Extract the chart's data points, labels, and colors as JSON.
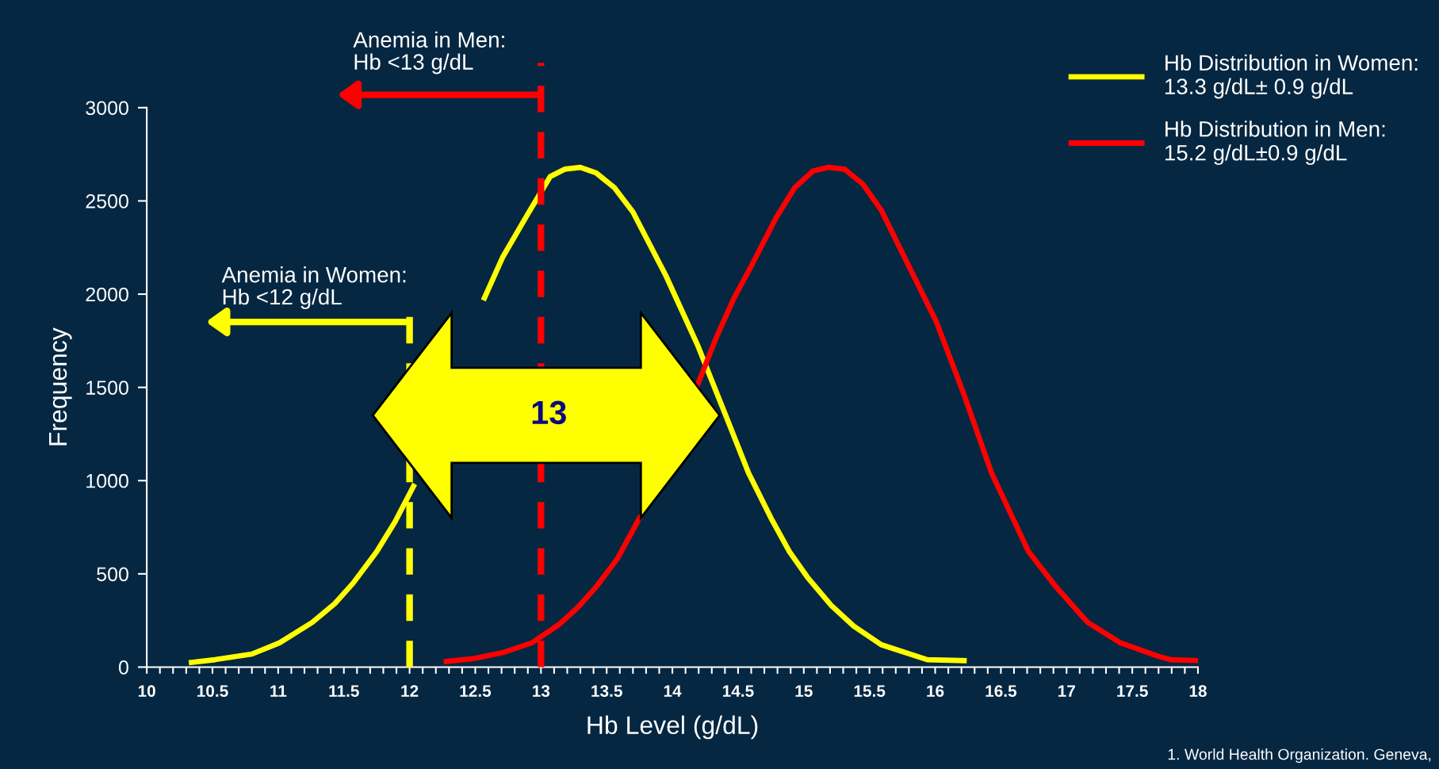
{
  "chart_data": {
    "type": "line",
    "xlabel": "Hb Level (g/dL)",
    "ylabel": "Frequency",
    "series": [
      {
        "name": "Hb Distribution in Women:\n13.3 g/dL± 0.9 g/dL",
        "color": "#ffff00",
        "x": [
          10.34,
          10.52,
          10.8,
          11.01,
          11.26,
          11.43,
          11.57,
          11.75,
          11.89,
          12.03,
          12.17,
          12.34,
          12.57,
          12.71,
          12.9,
          13.07,
          13.18,
          13.3,
          13.42,
          13.56,
          13.7,
          13.95,
          14.19,
          14.4,
          14.58,
          14.75,
          14.89,
          15.03,
          15.21,
          15.38,
          15.59,
          15.94,
          16.22
        ],
        "values": [
          25,
          40,
          70,
          130,
          240,
          340,
          450,
          620,
          780,
          970,
          null,
          null,
          1980,
          2200,
          2430,
          2630,
          2670,
          2680,
          2650,
          2570,
          2440,
          2100,
          1730,
          1360,
          1040,
          800,
          620,
          480,
          330,
          220,
          120,
          40,
          35
        ]
      },
      {
        "name": "Hb Distribution in Men:\n15.2 g/dL±0.9 g/dL",
        "color": "#ff0000",
        "x": [
          12.28,
          12.48,
          12.72,
          12.93,
          13.14,
          13.28,
          13.42,
          13.58,
          13.75,
          13.91,
          14.05,
          14.19,
          14.33,
          14.47,
          14.6,
          14.79,
          14.93,
          15.07,
          15.19,
          15.31,
          15.45,
          15.59,
          15.8,
          16.01,
          16.22,
          16.43,
          16.71,
          16.92,
          17.16,
          17.41,
          17.69,
          17.79,
          18.0
        ],
        "values": [
          30,
          45,
          80,
          130,
          230,
          320,
          430,
          580,
          800,
          null,
          null,
          1510,
          1760,
          1980,
          2150,
          2410,
          2570,
          2660,
          2680,
          2670,
          2590,
          2450,
          2150,
          1850,
          1460,
          1040,
          620,
          430,
          240,
          130,
          60,
          40,
          35
        ]
      }
    ],
    "xlim": [
      10,
      18
    ],
    "xticks": [
      10,
      10.5,
      11,
      11.5,
      12,
      12.5,
      13,
      13.5,
      14,
      14.5,
      15,
      15.5,
      16,
      16.5,
      17,
      17.5,
      18
    ],
    "ylim": [
      0,
      3000
    ],
    "yticks": [
      0,
      500,
      1000,
      1500,
      2000,
      2500,
      3000
    ],
    "ref_lines": [
      {
        "axis": "x",
        "value": 12,
        "label": "Anemia in Women:\nHb <12 g/dL",
        "color": "#ffff00",
        "line_style": "dashed"
      },
      {
        "axis": "x",
        "value": 13,
        "label": "Anemia in Men:\nHb <13 g/dL",
        "color": "#ff0000",
        "line_style": "dashed"
      }
    ],
    "annotations": [
      "13",
      "1. World Health Organization. Geneva,"
    ],
    "grid": false,
    "legend": "top right",
    "marker": "none",
    "line_style": "solid"
  }
}
